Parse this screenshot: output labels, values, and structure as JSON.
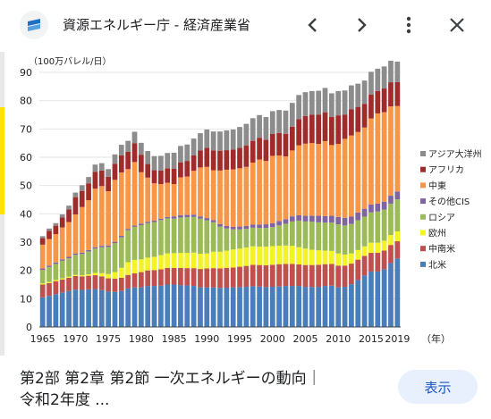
{
  "header": {
    "site_title": "資源エネルギー庁 - 経済産業省",
    "icons": {
      "site": "site-logo-icon",
      "prev": "chevron-left-icon",
      "next": "chevron-right-icon",
      "more": "more-vert-icon",
      "close": "close-icon"
    }
  },
  "footer": {
    "caption_line1": "第2部 第2章 第2節 一次エネルギーの動向｜",
    "caption_line2": "令和2年度 ...",
    "open_button": "表示"
  },
  "colors": {
    "北米": "#4a7ebb",
    "中南米": "#c0504d",
    "欧州": "#f3f328",
    "ロシア": "#9bbb59",
    "その他CIS": "#8064a2",
    "中東": "#f79646",
    "アフリカ": "#a02b2b",
    "アジア大洋州": "#8c8c8c"
  },
  "chart_data": {
    "type": "bar",
    "stacked": true,
    "unit_label": "（100万バレル/日）",
    "x_suffix": "（年）",
    "ylim": [
      0,
      90
    ],
    "yticks": [
      0,
      10,
      20,
      30,
      40,
      50,
      60,
      70,
      80,
      90
    ],
    "xticks": [
      "1965",
      "1970",
      "1975",
      "1980",
      "1985",
      "1990",
      "1995",
      "2000",
      "2005",
      "2010",
      "2015",
      "2019"
    ],
    "legend_position": "right",
    "categories": [
      "1965",
      "1966",
      "1967",
      "1968",
      "1969",
      "1970",
      "1971",
      "1972",
      "1973",
      "1974",
      "1975",
      "1976",
      "1977",
      "1978",
      "1979",
      "1980",
      "1981",
      "1982",
      "1983",
      "1984",
      "1985",
      "1986",
      "1987",
      "1988",
      "1989",
      "1990",
      "1991",
      "1992",
      "1993",
      "1994",
      "1995",
      "1996",
      "1997",
      "1998",
      "1999",
      "2000",
      "2001",
      "2002",
      "2003",
      "2004",
      "2005",
      "2006",
      "2007",
      "2008",
      "2009",
      "2010",
      "2011",
      "2012",
      "2013",
      "2014",
      "2015",
      "2016",
      "2017",
      "2018",
      "2019"
    ],
    "series": [
      {
        "name": "北米",
        "values": [
          10.5,
          11,
          11.6,
          12.2,
          12.7,
          13.2,
          13.1,
          13.3,
          13.4,
          13,
          12.5,
          12.4,
          12.7,
          13.6,
          14,
          14,
          14.5,
          14.5,
          14.6,
          15,
          15,
          14.8,
          14.7,
          14.5,
          14,
          14,
          14,
          13.8,
          13.9,
          14,
          14.1,
          14.2,
          14.4,
          14.3,
          14.1,
          14.2,
          14.3,
          14.5,
          14.5,
          14.5,
          14.2,
          14.1,
          14.2,
          14.5,
          14.6,
          14,
          14.2,
          15.1,
          16.6,
          18.2,
          19.6,
          19.6,
          20.4,
          22.6,
          24.2
        ]
      },
      {
        "name": "中南米",
        "values": [
          4.5,
          4.5,
          4.6,
          4.6,
          4.7,
          4.8,
          4.8,
          4.8,
          4.9,
          4.9,
          4.7,
          4.7,
          4.7,
          4.8,
          5,
          5.4,
          5.5,
          5.6,
          5.8,
          5.9,
          5.9,
          6.1,
          6.1,
          6.3,
          6.5,
          6.7,
          6.8,
          6.9,
          7,
          7,
          7.2,
          7.4,
          7.6,
          7.6,
          7.7,
          7.8,
          7.9,
          7.8,
          7.8,
          7.6,
          7.7,
          7.8,
          7.8,
          7.7,
          7.7,
          7.7,
          7.5,
          7.3,
          7.2,
          6.9,
          6.6,
          6.6,
          6.6,
          6.4,
          6.1
        ]
      },
      {
        "name": "欧州",
        "values": [
          0.4,
          0.4,
          0.4,
          0.4,
          0.4,
          0.4,
          0.4,
          0.5,
          0.8,
          1.1,
          1.5,
          2.3,
          3.5,
          4.5,
          4.7,
          4.5,
          4.5,
          4.7,
          5,
          5.1,
          5.2,
          5.3,
          5.4,
          5.5,
          5.4,
          5.3,
          5.8,
          5.9,
          6.1,
          6.4,
          6.4,
          6.5,
          6.5,
          6.5,
          6.6,
          6.6,
          6.5,
          6.5,
          6.4,
          6.1,
          5.8,
          5.4,
          5.1,
          4.8,
          4.6,
          4.3,
          3.9,
          3.6,
          3.4,
          3.4,
          3.6,
          3.6,
          3.5,
          3.5,
          3.5
        ]
      },
      {
        "name": "ロシア",
        "values": [
          4.8,
          5.3,
          5.7,
          6.2,
          6.5,
          7.1,
          7.5,
          8.1,
          8.6,
          9.2,
          9.6,
          10.2,
          10.8,
          11.3,
          11.7,
          12.1,
          12.2,
          12.3,
          12.4,
          12.4,
          12.2,
          12.5,
          12.6,
          12.6,
          12.4,
          11.7,
          10.4,
          8.9,
          7.8,
          7.1,
          6.8,
          6.6,
          6.6,
          6.6,
          6.6,
          6.7,
          7.2,
          7.7,
          8.6,
          9.4,
          9.6,
          9.9,
          9.9,
          9.9,
          10,
          10.3,
          10.3,
          10.4,
          10.5,
          10.5,
          10.7,
          11,
          11,
          11.1,
          11.3
        ]
      },
      {
        "name": "その他CIS",
        "values": [
          0.5,
          0.5,
          0.5,
          0.5,
          0.5,
          0.5,
          0.5,
          0.5,
          0.5,
          0.5,
          0.5,
          0.5,
          0.5,
          0.5,
          0.5,
          0.5,
          0.5,
          0.5,
          0.5,
          0.5,
          0.8,
          0.8,
          0.8,
          0.8,
          0.8,
          0.8,
          0.8,
          0.9,
          0.9,
          0.9,
          1,
          1,
          1.1,
          1.2,
          1.3,
          1.4,
          1.5,
          1.6,
          1.8,
          1.9,
          2,
          2.1,
          2.3,
          2.3,
          2.4,
          2.6,
          2.7,
          2.7,
          2.8,
          2.8,
          2.8,
          2.8,
          2.8,
          2.8,
          2.8
        ]
      },
      {
        "name": "中東",
        "values": [
          8.4,
          9.4,
          10,
          11.3,
          12.3,
          13.8,
          16.1,
          17.6,
          20.7,
          21.1,
          19.2,
          21.9,
          22.4,
          21.1,
          22.4,
          18.2,
          15.6,
          13.2,
          12.2,
          12.1,
          11.4,
          13.4,
          13.6,
          15.5,
          17.3,
          18.1,
          17.6,
          18.9,
          19.9,
          20.3,
          20.6,
          20.9,
          21.9,
          23,
          22.4,
          23.8,
          23.2,
          22.2,
          23.3,
          24.7,
          25.5,
          25.7,
          25.4,
          26.5,
          25,
          25.8,
          27.9,
          28.6,
          28.4,
          28.7,
          30.4,
          31.9,
          31.6,
          31.6,
          30.2
        ]
      },
      {
        "name": "アフリカ",
        "values": [
          2.3,
          2.9,
          3,
          3.5,
          4.5,
          6.1,
          5.7,
          5.9,
          5.9,
          5.5,
          5.1,
          5.7,
          6.1,
          6.1,
          6.6,
          6.2,
          4.8,
          4.6,
          4.8,
          5.1,
          5.4,
          5.3,
          5.5,
          5.5,
          6,
          6.7,
          7,
          7,
          6.9,
          7,
          7.2,
          7.5,
          7.7,
          7.7,
          7.5,
          7.8,
          8,
          8,
          8.4,
          9.3,
          9.8,
          10,
          10.3,
          10.2,
          9.9,
          10.1,
          8.6,
          9.3,
          8.9,
          8.3,
          8.4,
          7.9,
          8.4,
          8.5,
          8.5
        ]
      },
      {
        "name": "アジア大洋州",
        "values": [
          0.7,
          0.8,
          0.9,
          1.1,
          1.3,
          1.6,
          2,
          2.3,
          2.6,
          2.6,
          2.7,
          3.3,
          3.7,
          3.9,
          4.1,
          4.2,
          4.6,
          5,
          5.2,
          5.4,
          5.7,
          5.8,
          5.8,
          5.9,
          6.1,
          6.5,
          6.7,
          6.8,
          7,
          7.1,
          7.4,
          7.7,
          8,
          8,
          8,
          8,
          8.1,
          8.2,
          8.4,
          8.5,
          8.4,
          8.4,
          8.5,
          8.6,
          8.4,
          8.6,
          8.5,
          8.4,
          8.2,
          8.3,
          8.1,
          7.9,
          7.8,
          7.6,
          7.2
        ]
      }
    ]
  }
}
